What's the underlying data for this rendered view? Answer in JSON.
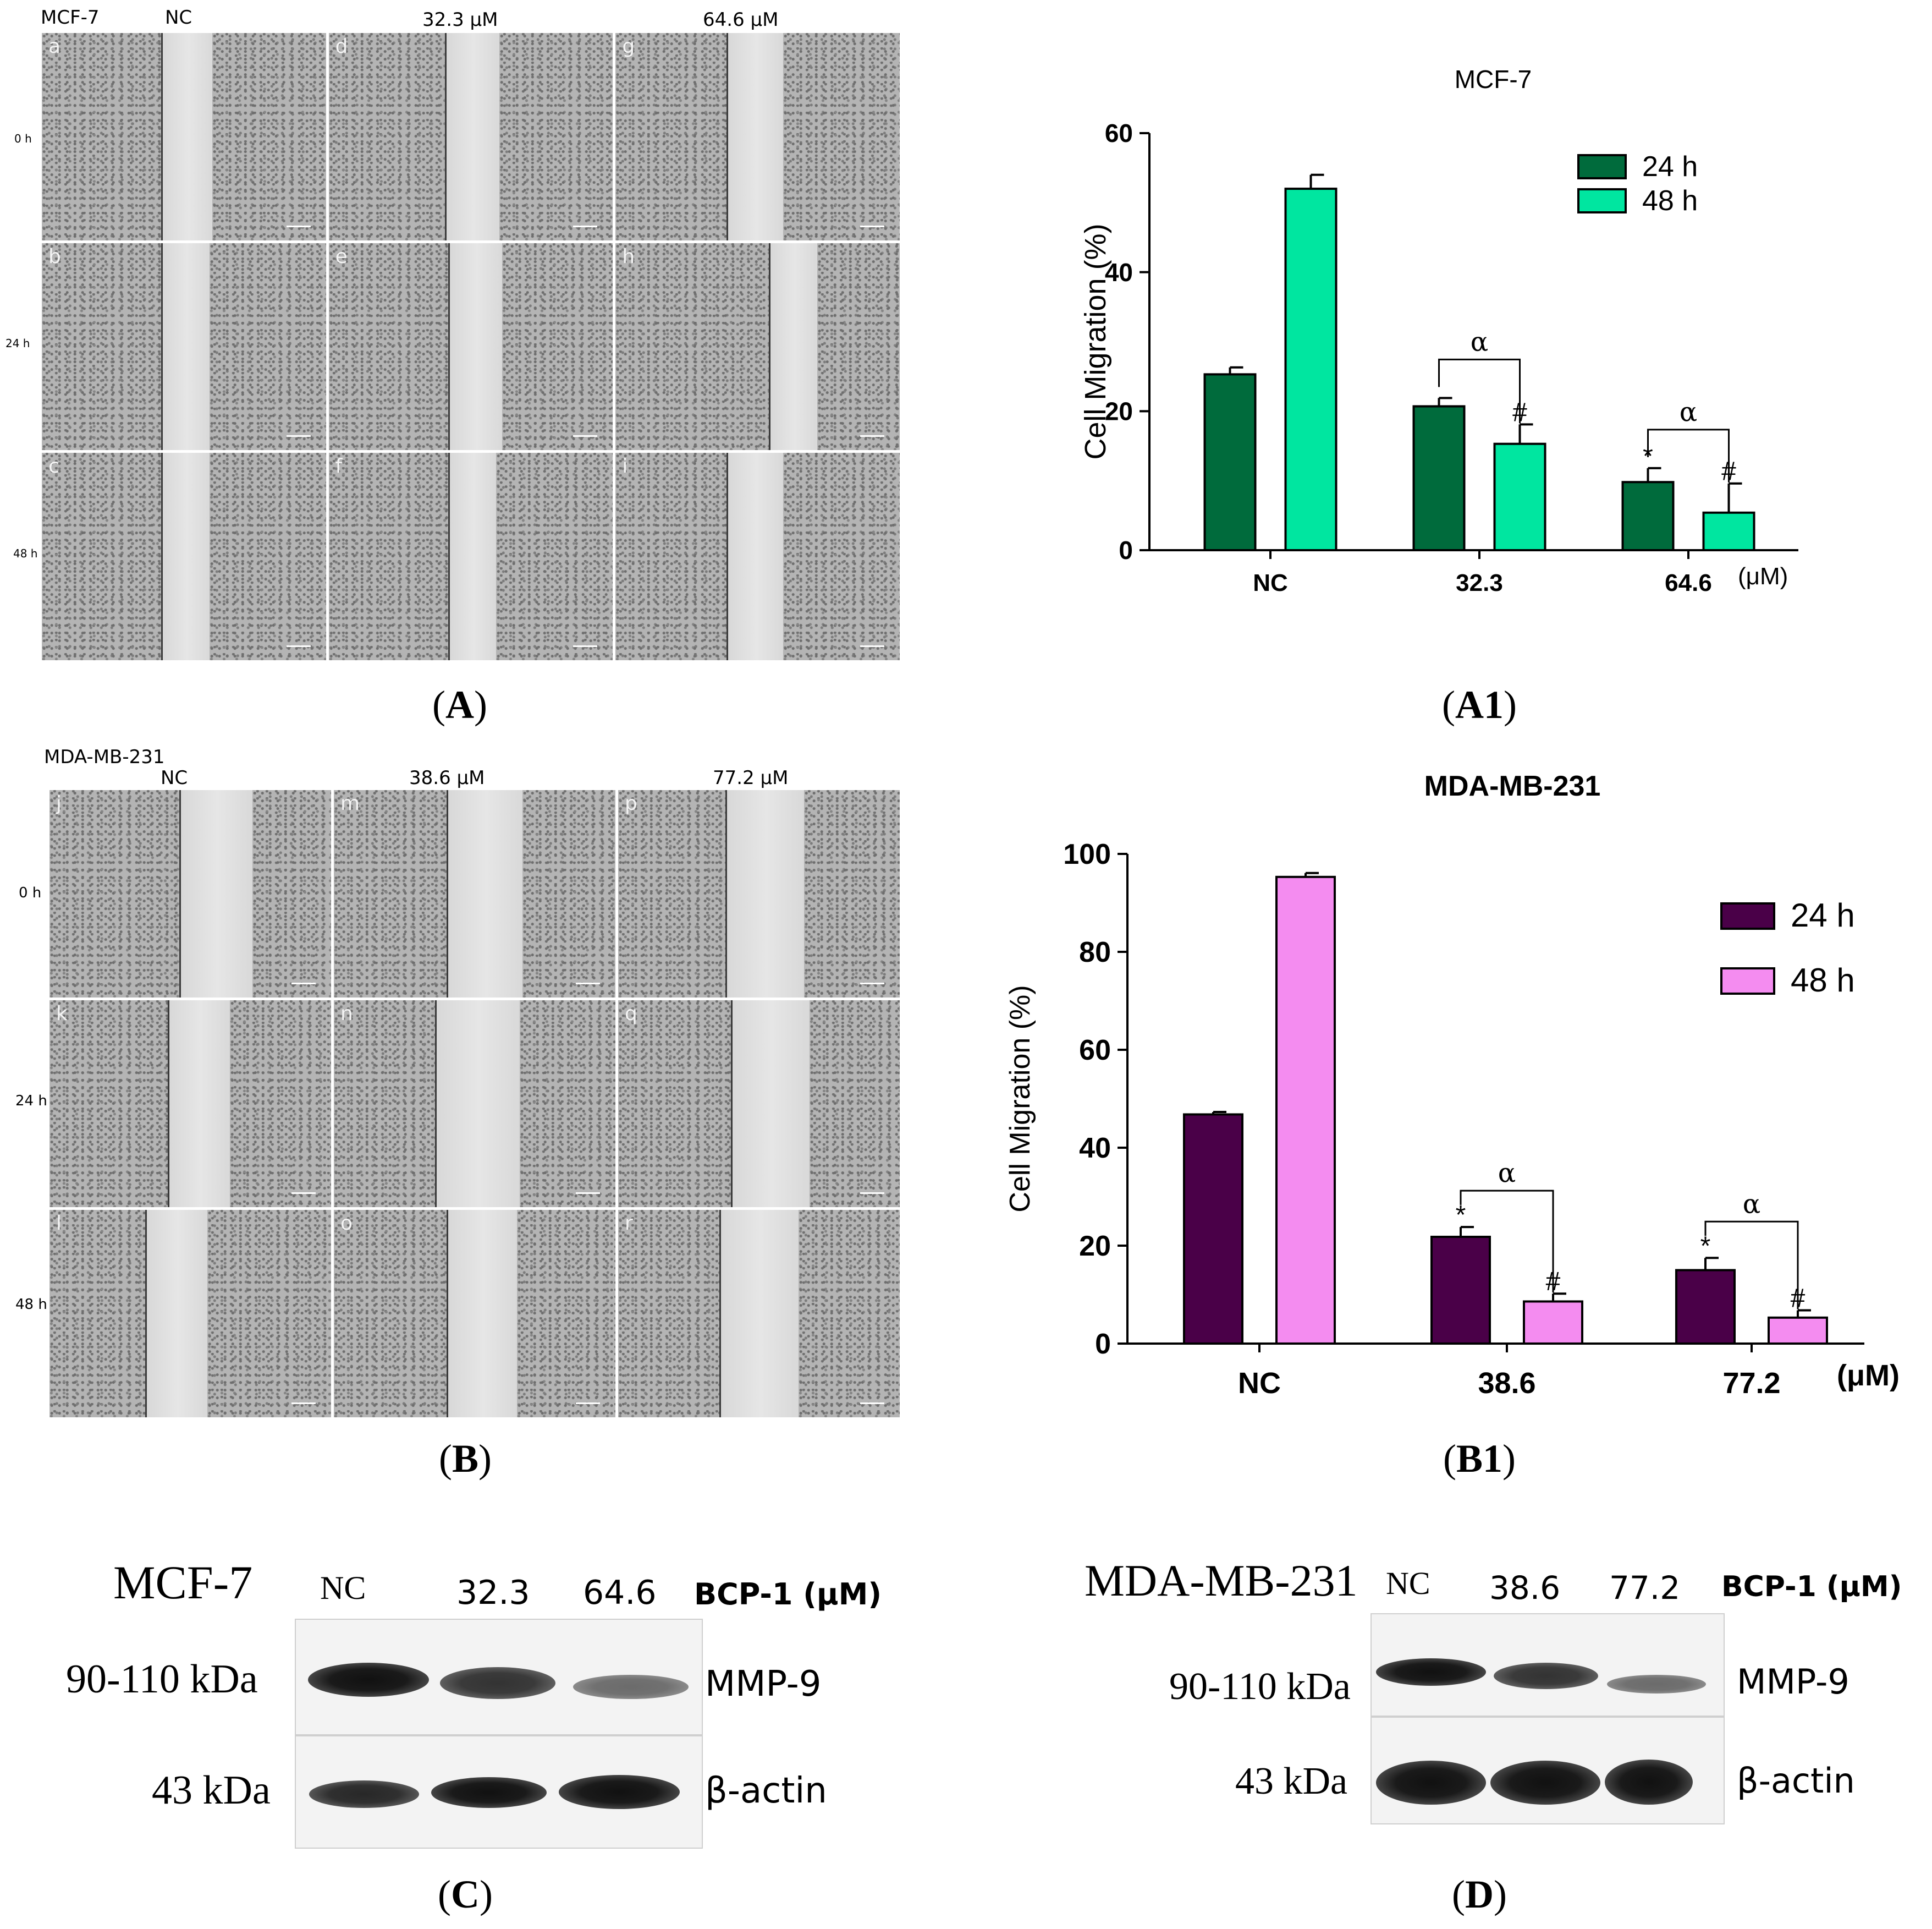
{
  "panels": {
    "A": {
      "cell_line": "MCF-7",
      "columns": [
        "NC",
        "32.3 μM",
        "64.6 μM"
      ],
      "rows": [
        "0 h",
        "24 h",
        "48 h"
      ],
      "tiles": [
        "a",
        "d",
        "g",
        "b",
        "e",
        "h",
        "c",
        "f",
        "i"
      ],
      "caption": "A"
    },
    "B": {
      "cell_line": "MDA-MB-231",
      "columns": [
        "NC",
        "38.6 μM",
        "77.2 μM"
      ],
      "rows": [
        "0 h",
        "24 h",
        "48 h"
      ],
      "tiles": [
        "j",
        "m",
        "p",
        "k",
        "n",
        "q",
        "l",
        "o",
        "r"
      ],
      "caption": "B"
    },
    "C": {
      "cell_line": "MCF-7",
      "lanes": [
        "NC",
        "32.3",
        "64.6"
      ],
      "treatment": "BCP-1 (μM)",
      "band1_size": "90-110 kDa",
      "band1_name": "MMP-9",
      "band2_size": "43 kDa",
      "band2_name": "β-actin",
      "caption": "C"
    },
    "D": {
      "cell_line": "MDA-MB-231",
      "lanes": [
        "NC",
        "38.6",
        "77.2"
      ],
      "treatment": "BCP-1 (μM)",
      "band1_size": "90-110 kDa",
      "band1_name": "MMP-9",
      "band2_size": "43 kDa",
      "band2_name": "β-actin",
      "caption": "D"
    },
    "A1": {
      "caption": "A1"
    },
    "B1": {
      "caption": "B1"
    }
  },
  "chart_data": [
    {
      "type": "bar",
      "title": "MCF-7",
      "xlabel": "",
      "ylabel": "Cell Migration (%)",
      "unit_label": "(μM)",
      "categories": [
        "NC",
        "32.3",
        "64.6"
      ],
      "series": [
        {
          "name": "24 h",
          "color": "#006b3c",
          "values": [
            25.3,
            20.7,
            9.8
          ],
          "errors": [
            1.0,
            1.2,
            2.0
          ]
        },
        {
          "name": "48 h",
          "color": "#00e6a0",
          "values": [
            52.0,
            15.3,
            5.4
          ],
          "errors": [
            2.0,
            2.8,
            4.2
          ]
        }
      ],
      "ylim": [
        0,
        60
      ],
      "yticks": [
        0,
        20,
        40,
        60
      ],
      "annotations": {
        "star": [
          "",
          "",
          "*"
        ],
        "hash": [
          "",
          "#",
          "#"
        ],
        "alpha": [
          "",
          "α",
          "α"
        ]
      }
    },
    {
      "type": "bar",
      "title": "MDA-MB-231",
      "xlabel": "",
      "ylabel": "Cell Migration (%)",
      "unit_label": "(μM)",
      "categories": [
        "NC",
        "38.6",
        "77.2"
      ],
      "series": [
        {
          "name": "24 h",
          "color": "#4a0048",
          "values": [
            46.8,
            21.8,
            15.0
          ],
          "errors": [
            0.5,
            2.0,
            2.5
          ]
        },
        {
          "name": "48 h",
          "color": "#f48cf0",
          "values": [
            95.3,
            8.6,
            5.3
          ],
          "errors": [
            0.8,
            1.6,
            1.5
          ]
        }
      ],
      "ylim": [
        0,
        100
      ],
      "yticks": [
        0,
        20,
        40,
        60,
        80,
        100
      ],
      "annotations": {
        "star": [
          "",
          "*",
          "*"
        ],
        "hash": [
          "",
          "#",
          "#"
        ],
        "alpha": [
          "",
          "α",
          "α"
        ]
      }
    }
  ]
}
